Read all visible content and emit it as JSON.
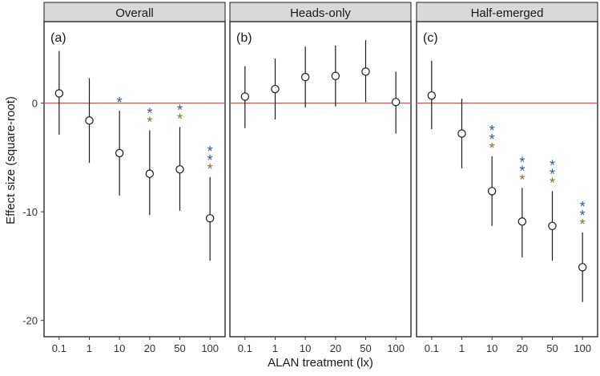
{
  "chart_data": {
    "type": "scatter",
    "xlabel": "ALAN treatment (lx)",
    "ylabel": "Effect size (square-root)",
    "categories": [
      "0.1",
      "1",
      "10",
      "20",
      "50",
      "100"
    ],
    "ylim": [
      -21.5,
      7.5
    ],
    "yticks": [
      0,
      -10,
      -20
    ],
    "yticklabels": [
      "0",
      "-10",
      "-20"
    ],
    "reference_line": {
      "y": 0,
      "color": "#e34a4a"
    },
    "grid": false,
    "colors": {
      "point": "#1a1a1a",
      "reference": "#e34a4a",
      "star_top": "#2b5d8a",
      "star_bottom": "#8a6d2b",
      "strip": "#d9d9d9"
    },
    "panels": [
      {
        "title": "Overall",
        "tag": "(a)",
        "points": [
          {
            "x": "0.1",
            "y": 0.9,
            "lower": -2.9,
            "upper": 4.8,
            "stars": ""
          },
          {
            "x": "1",
            "y": -1.6,
            "lower": -5.5,
            "upper": 2.3,
            "stars": ""
          },
          {
            "x": "10",
            "y": -4.6,
            "lower": -8.5,
            "upper": -0.7,
            "stars": "*"
          },
          {
            "x": "20",
            "y": -6.5,
            "lower": -10.3,
            "upper": -2.5,
            "stars": "**"
          },
          {
            "x": "50",
            "y": -6.1,
            "lower": -9.9,
            "upper": -2.2,
            "stars": "**"
          },
          {
            "x": "100",
            "y": -10.6,
            "lower": -14.5,
            "upper": -6.8,
            "stars": "***"
          }
        ]
      },
      {
        "title": "Heads-only",
        "tag": "(b)",
        "points": [
          {
            "x": "0.1",
            "y": 0.6,
            "lower": -2.3,
            "upper": 3.4,
            "stars": ""
          },
          {
            "x": "1",
            "y": 1.3,
            "lower": -1.5,
            "upper": 4.1,
            "stars": ""
          },
          {
            "x": "10",
            "y": 2.4,
            "lower": -0.4,
            "upper": 5.2,
            "stars": ""
          },
          {
            "x": "20",
            "y": 2.5,
            "lower": -0.3,
            "upper": 5.3,
            "stars": ""
          },
          {
            "x": "50",
            "y": 2.9,
            "lower": 0.1,
            "upper": 5.8,
            "stars": ""
          },
          {
            "x": "100",
            "y": 0.1,
            "lower": -2.8,
            "upper": 2.9,
            "stars": ""
          }
        ]
      },
      {
        "title": "Half-emerged",
        "tag": "(c)",
        "points": [
          {
            "x": "0.1",
            "y": 0.7,
            "lower": -2.4,
            "upper": 3.9,
            "stars": ""
          },
          {
            "x": "1",
            "y": -2.8,
            "lower": -6.0,
            "upper": 0.4,
            "stars": ""
          },
          {
            "x": "10",
            "y": -8.1,
            "lower": -11.3,
            "upper": -4.9,
            "stars": "***"
          },
          {
            "x": "20",
            "y": -10.9,
            "lower": -14.2,
            "upper": -7.8,
            "stars": "***"
          },
          {
            "x": "50",
            "y": -11.3,
            "lower": -14.5,
            "upper": -8.1,
            "stars": "***"
          },
          {
            "x": "100",
            "y": -15.1,
            "lower": -18.3,
            "upper": -11.9,
            "stars": "***"
          }
        ]
      }
    ]
  }
}
